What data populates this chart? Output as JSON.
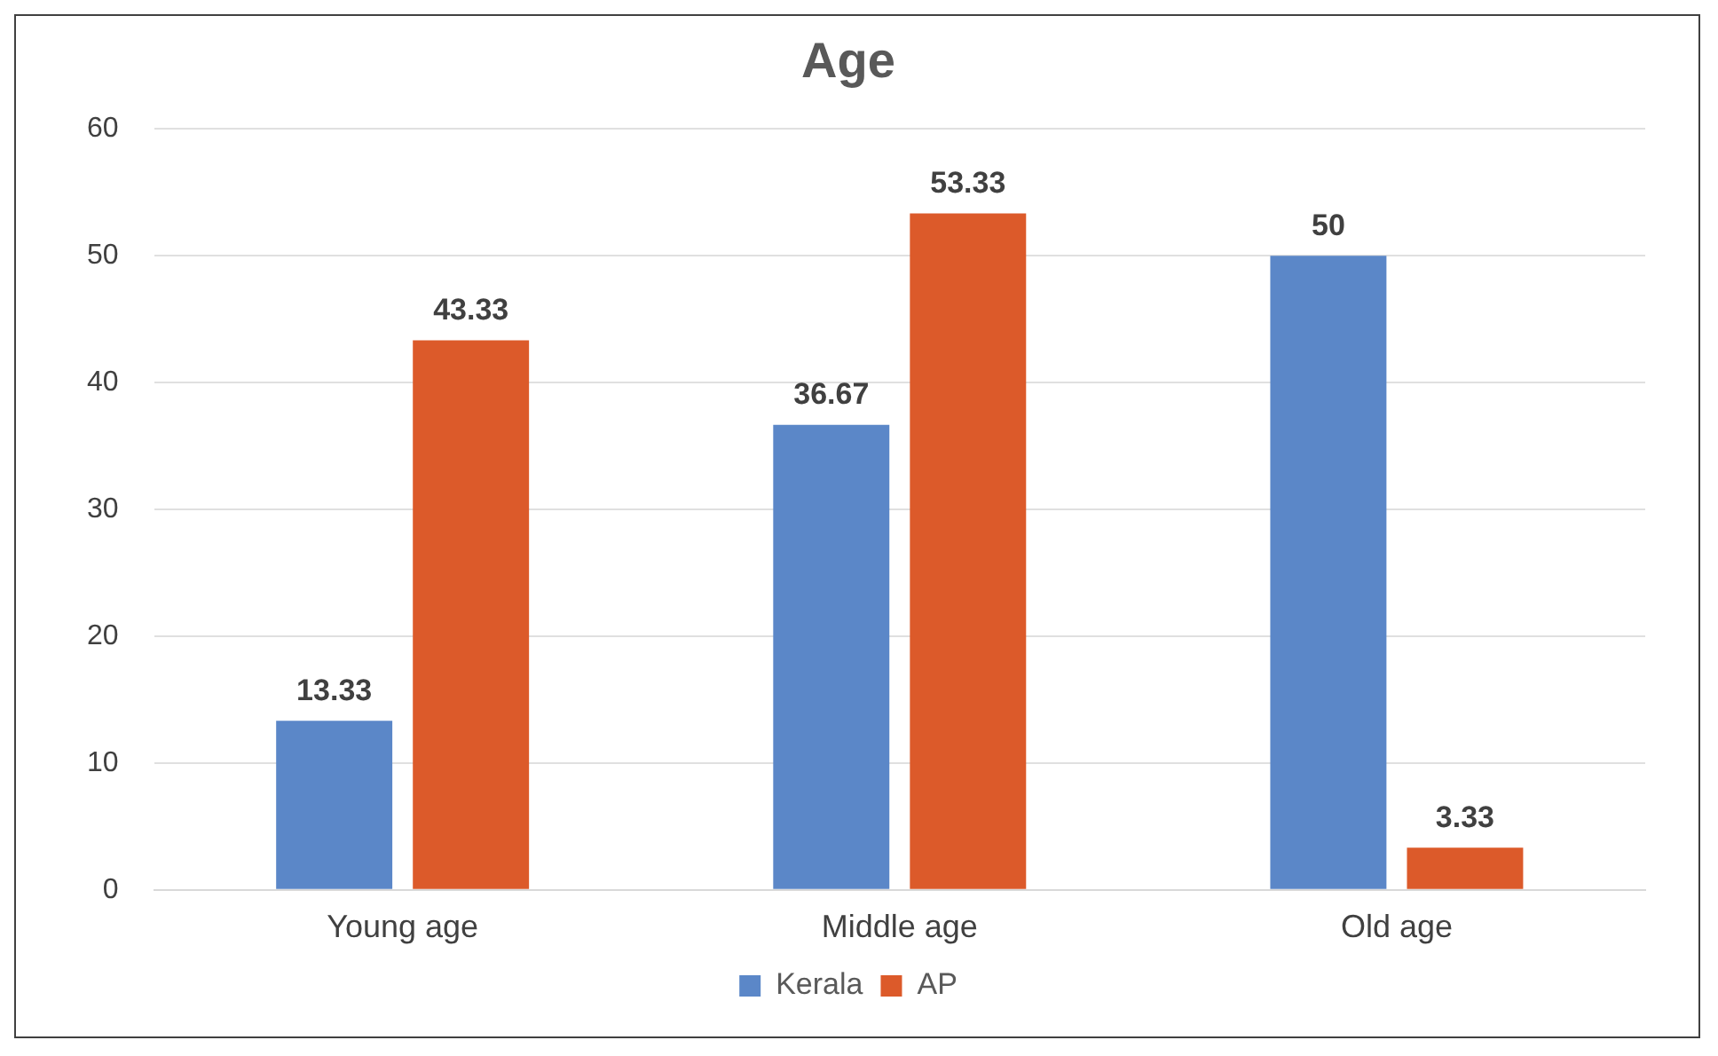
{
  "chart_data": {
    "type": "bar",
    "title": "Age",
    "categories": [
      "Young age",
      "Middle age",
      "Old age"
    ],
    "series": [
      {
        "name": "Kerala",
        "color": "#5b87c8",
        "values": [
          13.33,
          36.67,
          50
        ]
      },
      {
        "name": "AP",
        "color": "#dc5a2a",
        "values": [
          43.33,
          53.33,
          3.33
        ]
      }
    ],
    "ylim": [
      0,
      60
    ],
    "yticks": [
      0,
      10,
      20,
      30,
      40,
      50,
      60
    ],
    "grid": "y",
    "legend": "bottom",
    "data_labels": true
  }
}
